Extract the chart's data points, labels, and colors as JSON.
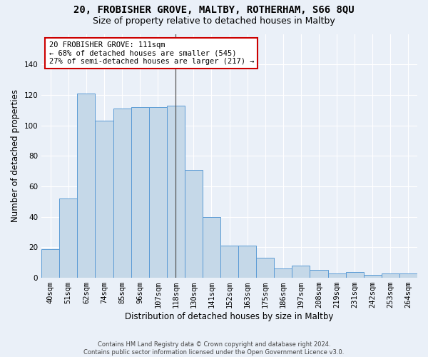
{
  "title1": "20, FROBISHER GROVE, MALTBY, ROTHERHAM, S66 8QU",
  "title2": "Size of property relative to detached houses in Maltby",
  "xlabel": "Distribution of detached houses by size in Maltby",
  "ylabel": "Number of detached properties",
  "categories": [
    "40sqm",
    "51sqm",
    "62sqm",
    "74sqm",
    "85sqm",
    "96sqm",
    "107sqm",
    "118sqm",
    "130sqm",
    "141sqm",
    "152sqm",
    "163sqm",
    "175sqm",
    "186sqm",
    "197sqm",
    "208sqm",
    "219sqm",
    "231sqm",
    "242sqm",
    "253sqm",
    "264sqm"
  ],
  "values": [
    19,
    52,
    121,
    103,
    111,
    112,
    112,
    113,
    71,
    40,
    21,
    21,
    13,
    6,
    8,
    5,
    3,
    4,
    2,
    3,
    3
  ],
  "bar_color": "#c5d8e8",
  "bar_edge_color": "#5b9bd5",
  "highlight_index": 7,
  "annotation_line1": "20 FROBISHER GROVE: 111sqm",
  "annotation_line2": "← 68% of detached houses are smaller (545)",
  "annotation_line3": "27% of semi-detached houses are larger (217) →",
  "annotation_box_color": "#ffffff",
  "annotation_box_edge": "#cc0000",
  "vline_color": "#555555",
  "ylim": [
    0,
    160
  ],
  "yticks": [
    0,
    20,
    40,
    60,
    80,
    100,
    120,
    140
  ],
  "background_color": "#eaf0f8",
  "grid_color": "#ffffff",
  "footer": "Contains HM Land Registry data © Crown copyright and database right 2024.\nContains public sector information licensed under the Open Government Licence v3.0.",
  "title1_fontsize": 10,
  "title2_fontsize": 9,
  "xlabel_fontsize": 8.5,
  "ylabel_fontsize": 8.5,
  "tick_fontsize": 7.5,
  "annotation_fontsize": 7.5,
  "footer_fontsize": 6.0
}
